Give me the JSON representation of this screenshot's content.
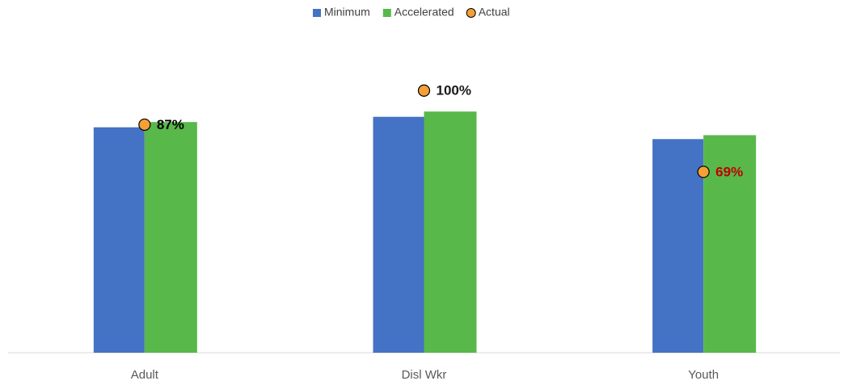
{
  "chart_data": {
    "type": "bar",
    "categories": [
      "Adult",
      "Disl Wkr",
      "Youth"
    ],
    "ylim": [
      0,
      105
    ],
    "series": [
      {
        "name": "Minimum",
        "type": "bar",
        "color": "#4472c4",
        "values": [
          86,
          90,
          81.5
        ]
      },
      {
        "name": "Accelerated",
        "type": "bar",
        "color": "#58b84a",
        "values": [
          88,
          92,
          83
        ]
      },
      {
        "name": "Actual",
        "type": "scatter",
        "color": "#f5a035",
        "values": [
          87,
          100,
          69
        ],
        "value_labels": [
          "87%",
          "100%",
          "69%"
        ],
        "label_colors": [
          "#000000",
          "#1a1a1a",
          "#c00000"
        ]
      }
    ],
    "legend": "top"
  }
}
